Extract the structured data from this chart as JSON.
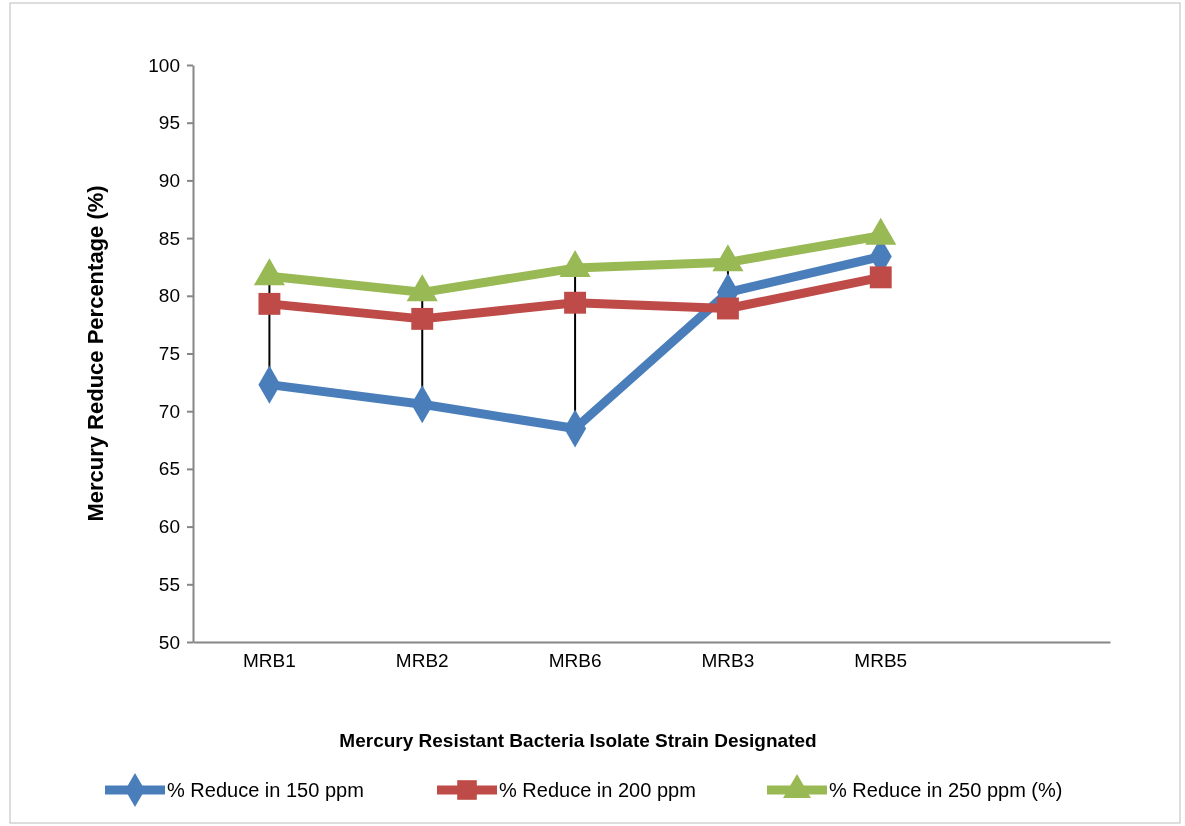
{
  "chart_data": {
    "type": "line",
    "xlabel": "Mercury Resistant Bacteria Isolate Strain Designated",
    "ylabel": "Mercury Reduce Percentage (%)",
    "categories": [
      "MRB1",
      "MRB2",
      "MRB6",
      "MRB3",
      "MRB5",
      null
    ],
    "series": [
      {
        "name": "% Reduce in 150 ppm",
        "color": "#4a7ebb",
        "marker": "diamond",
        "values": [
          72.3,
          70.6,
          68.5,
          80.3,
          83.4,
          null
        ]
      },
      {
        "name": "% Reduce in 200 ppm",
        "color": "#be4b48",
        "marker": "square",
        "values": [
          79.3,
          78.0,
          79.4,
          78.9,
          81.6,
          null
        ]
      },
      {
        "name": "% Reduce in 250 ppm (%)",
        "color": "#98b954",
        "marker": "triangle",
        "values": [
          81.7,
          80.3,
          82.4,
          82.9,
          85.2,
          null
        ]
      }
    ],
    "ylim": [
      50,
      100
    ],
    "yticks": [
      50,
      55,
      60,
      65,
      70,
      75,
      80,
      85,
      90,
      95,
      100
    ],
    "grid": false,
    "legend": "bottom"
  }
}
